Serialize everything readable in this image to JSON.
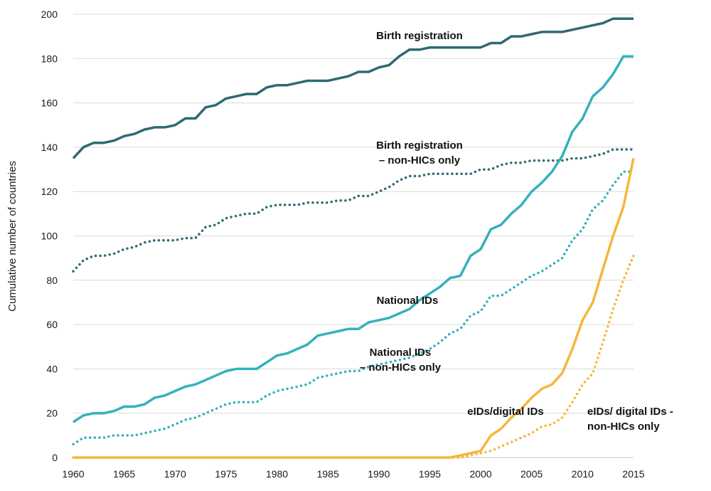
{
  "chart_data": {
    "type": "line",
    "title": "",
    "xlabel": "",
    "ylabel": "Cumulative number of countries",
    "xlim": [
      1960,
      2015
    ],
    "ylim": [
      0,
      200
    ],
    "xticks": [
      1960,
      1965,
      1970,
      1975,
      1980,
      1985,
      1990,
      1995,
      2000,
      2005,
      2010,
      2015
    ],
    "yticks": [
      0,
      20,
      40,
      60,
      80,
      100,
      120,
      140,
      160,
      180,
      200
    ],
    "grid": "horizontal",
    "x": [
      1960,
      1961,
      1962,
      1963,
      1964,
      1965,
      1966,
      1967,
      1968,
      1969,
      1970,
      1971,
      1972,
      1973,
      1974,
      1975,
      1976,
      1977,
      1978,
      1979,
      1980,
      1981,
      1982,
      1983,
      1984,
      1985,
      1986,
      1987,
      1988,
      1989,
      1990,
      1991,
      1992,
      1993,
      1994,
      1995,
      1996,
      1997,
      1998,
      1999,
      2000,
      2001,
      2002,
      2003,
      2004,
      2005,
      2006,
      2007,
      2008,
      2009,
      2010,
      2011,
      2012,
      2013,
      2014,
      2015
    ],
    "series": [
      {
        "name": "Birth registration",
        "label_lines": [
          "Birth registration"
        ],
        "color": "#2e6a72",
        "style": "solid",
        "values": [
          135,
          140,
          142,
          142,
          143,
          145,
          146,
          148,
          149,
          149,
          150,
          153,
          153,
          158,
          159,
          162,
          163,
          164,
          164,
          167,
          168,
          168,
          169,
          170,
          170,
          170,
          171,
          172,
          174,
          174,
          176,
          177,
          181,
          184,
          184,
          185,
          185,
          185,
          185,
          185,
          185,
          187,
          187,
          190,
          190,
          191,
          192,
          192,
          192,
          193,
          194,
          195,
          196,
          198,
          198,
          198
        ]
      },
      {
        "name": "Birth registration – non-HICs only",
        "label_lines": [
          "Birth registration",
          "– non-HICs only"
        ],
        "color": "#2e6a72",
        "style": "dotted",
        "values": [
          84,
          89,
          91,
          91,
          92,
          94,
          95,
          97,
          98,
          98,
          98,
          99,
          99,
          104,
          105,
          108,
          109,
          110,
          110,
          113,
          114,
          114,
          114,
          115,
          115,
          115,
          116,
          116,
          118,
          118,
          120,
          122,
          125,
          127,
          127,
          128,
          128,
          128,
          128,
          128,
          130,
          130,
          132,
          133,
          133,
          134,
          134,
          134,
          134,
          135,
          135,
          136,
          137,
          139,
          139,
          139
        ]
      },
      {
        "name": "National IDs",
        "label_lines": [
          "National IDs"
        ],
        "color": "#35b1bd",
        "style": "solid",
        "values": [
          16,
          19,
          20,
          20,
          21,
          23,
          23,
          24,
          27,
          28,
          30,
          32,
          33,
          35,
          37,
          39,
          40,
          40,
          40,
          43,
          46,
          47,
          49,
          51,
          55,
          56,
          57,
          58,
          58,
          61,
          62,
          63,
          65,
          67,
          71,
          74,
          77,
          81,
          82,
          91,
          94,
          103,
          105,
          110,
          114,
          120,
          124,
          129,
          136,
          147,
          153,
          163,
          167,
          173,
          181,
          181
        ]
      },
      {
        "name": "National IDs – non-HICs only",
        "label_lines": [
          "National IDs",
          "– non-HICs only"
        ],
        "color": "#35b1bd",
        "style": "dotted",
        "values": [
          6,
          9,
          9,
          9,
          10,
          10,
          10,
          11,
          12,
          13,
          15,
          17,
          18,
          20,
          22,
          24,
          25,
          25,
          25,
          28,
          30,
          31,
          32,
          33,
          36,
          37,
          38,
          39,
          39,
          41,
          42,
          43,
          44,
          45,
          47,
          49,
          52,
          56,
          58,
          64,
          66,
          73,
          73,
          76,
          79,
          82,
          84,
          87,
          90,
          98,
          103,
          112,
          116,
          123,
          129,
          129
        ]
      },
      {
        "name": "eIDs/digital IDs",
        "label_lines": [
          "eIDs/digital IDs"
        ],
        "color": "#f5b73b",
        "style": "solid",
        "values": [
          0,
          0,
          0,
          0,
          0,
          0,
          0,
          0,
          0,
          0,
          0,
          0,
          0,
          0,
          0,
          0,
          0,
          0,
          0,
          0,
          0,
          0,
          0,
          0,
          0,
          0,
          0,
          0,
          0,
          0,
          0,
          0,
          0,
          0,
          0,
          0,
          0,
          0,
          1,
          2,
          3,
          10,
          13,
          18,
          22,
          27,
          31,
          33,
          38,
          49,
          62,
          70,
          85,
          100,
          113,
          135
        ]
      },
      {
        "name": "eIDs/ digital IDs - non-HICs only",
        "label_lines": [
          "eIDs/ digital IDs -",
          "non-HICs only"
        ],
        "color": "#f5b73b",
        "style": "dotted",
        "values": [
          0,
          0,
          0,
          0,
          0,
          0,
          0,
          0,
          0,
          0,
          0,
          0,
          0,
          0,
          0,
          0,
          0,
          0,
          0,
          0,
          0,
          0,
          0,
          0,
          0,
          0,
          0,
          0,
          0,
          0,
          0,
          0,
          0,
          0,
          0,
          0,
          0,
          0,
          0,
          1,
          2,
          3,
          5,
          7,
          9,
          11,
          14,
          15,
          18,
          25,
          33,
          38,
          52,
          67,
          80,
          91
        ]
      }
    ]
  }
}
